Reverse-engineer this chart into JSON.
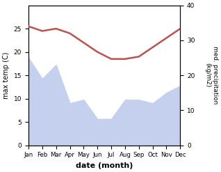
{
  "months": [
    "Jan",
    "Feb",
    "Mar",
    "Apr",
    "May",
    "Jun",
    "Jul",
    "Aug",
    "Sep",
    "Oct",
    "Nov",
    "Dec"
  ],
  "month_x": [
    0,
    1,
    2,
    3,
    4,
    5,
    6,
    7,
    8,
    9,
    10,
    11
  ],
  "temperature": [
    25.5,
    24.5,
    25.0,
    24.0,
    22.0,
    20.0,
    18.5,
    18.5,
    19.0,
    21.0,
    23.0,
    25.0
  ],
  "precipitation": [
    25.0,
    19.0,
    23.0,
    12.0,
    13.0,
    7.5,
    7.5,
    13.0,
    13.0,
    12.0,
    15.0,
    17.0
  ],
  "temp_color": "#c0504d",
  "precip_fill_color": "#c5d0ee",
  "temp_ylim": [
    0,
    30
  ],
  "precip_ylim": [
    0,
    40
  ],
  "temp_yticks": [
    0,
    5,
    10,
    15,
    20,
    25
  ],
  "precip_yticks": [
    0,
    10,
    20,
    30,
    40
  ],
  "xlabel": "date (month)",
  "ylabel_left": "max temp (C)",
  "ylabel_right": "med. precipitation\n(kg/m2)",
  "figsize": [
    3.18,
    2.47
  ],
  "dpi": 100
}
